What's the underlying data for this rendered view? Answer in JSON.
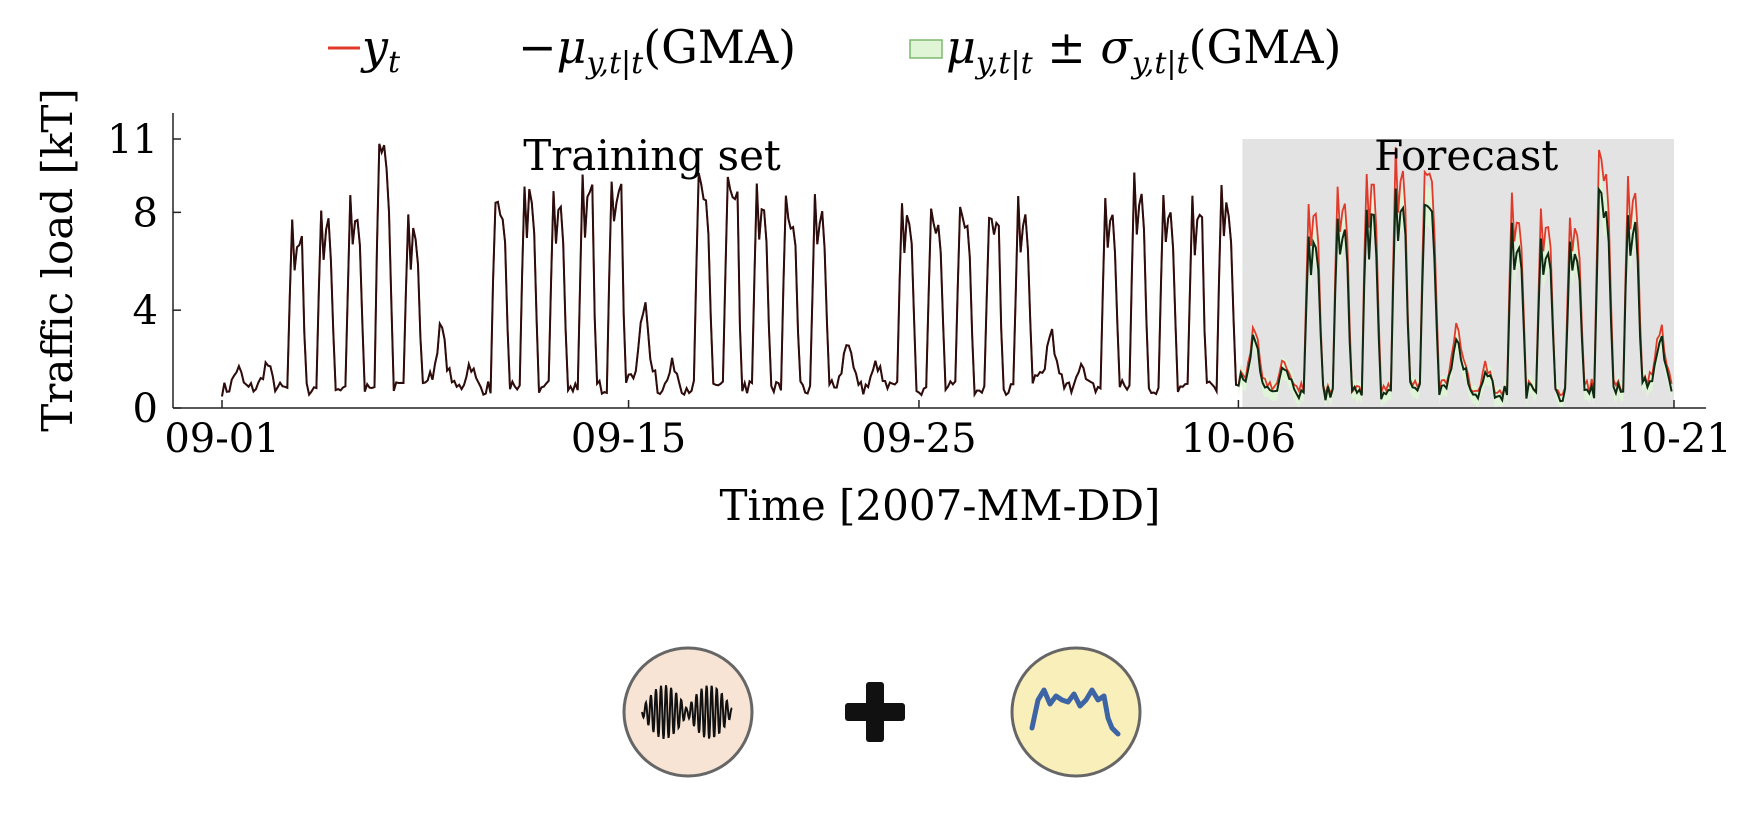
{
  "legend": {
    "entries": [
      {
        "kind": "line",
        "color": "#e03a2a",
        "symbol": "y",
        "subscript": "t",
        "suffix": ""
      },
      {
        "kind": "line",
        "color": "#111111",
        "prefix": "−",
        "symbol": "μ",
        "subscript": "y,t|t",
        "suffix": "(GMA)"
      },
      {
        "kind": "band",
        "color": "#dff5d6",
        "edge": "#7fb870",
        "symbol": "μ",
        "subscript": "y,t|t",
        "mid": " ± σ",
        "subscript2": "y,t|t",
        "suffix": "(GMA)"
      }
    ]
  },
  "chart_data": {
    "type": "line",
    "xlabel": "Time [2007-MM-DD]",
    "ylabel": "Traffic load [kT]",
    "xlim": [
      "2007-09-01",
      "2007-10-21"
    ],
    "ylim": [
      0,
      11
    ],
    "yticks": [
      0,
      4,
      8,
      11
    ],
    "xticks": [
      "09-01",
      "09-15",
      "09-25",
      "10-06",
      "10-21"
    ],
    "xtick_dates": [
      "2007-09-01",
      "2007-09-15",
      "2007-09-25",
      "2007-10-06",
      "2007-10-21"
    ],
    "regions": [
      {
        "label": "Training set",
        "start": "2007-09-01",
        "end": "2007-10-06",
        "shaded": false
      },
      {
        "label": "Forecast",
        "start": "2007-10-06",
        "end": "2007-10-21",
        "shaded": true,
        "color": "#e3e3e3"
      }
    ],
    "series": [
      {
        "name": "y_t",
        "color": "#e03a2a"
      },
      {
        "name": "μ_{y,t|t}(GMA)",
        "color": "#111111"
      },
      {
        "name": "μ_{y,t|t} ± σ_{y,t|t}(GMA)",
        "color": "#dff5d6"
      }
    ],
    "daily_peaks": [
      {
        "date": "2007-09-01",
        "y": 1.1
      },
      {
        "date": "2007-09-02",
        "y": 1.3
      },
      {
        "date": "2007-09-03",
        "y": 7.0
      },
      {
        "date": "2007-09-04",
        "y": 7.8
      },
      {
        "date": "2007-09-05",
        "y": 8.0
      },
      {
        "date": "2007-09-06",
        "y": 10.5
      },
      {
        "date": "2007-09-07",
        "y": 7.3
      },
      {
        "date": "2007-09-08",
        "y": 2.8
      },
      {
        "date": "2007-09-09",
        "y": 1.3
      },
      {
        "date": "2007-09-10",
        "y": 8.2
      },
      {
        "date": "2007-09-11",
        "y": 8.7
      },
      {
        "date": "2007-09-12",
        "y": 8.6
      },
      {
        "date": "2007-09-13",
        "y": 9.0
      },
      {
        "date": "2007-09-14",
        "y": 9.2
      },
      {
        "date": "2007-09-15",
        "y": 3.7
      },
      {
        "date": "2007-09-16",
        "y": 1.3
      },
      {
        "date": "2007-09-17",
        "y": 9.0
      },
      {
        "date": "2007-09-18",
        "y": 8.7
      },
      {
        "date": "2007-09-19",
        "y": 8.6
      },
      {
        "date": "2007-09-20",
        "y": 8.0
      },
      {
        "date": "2007-09-21",
        "y": 8.1
      },
      {
        "date": "2007-09-22",
        "y": 2.3
      },
      {
        "date": "2007-09-23",
        "y": 1.3
      },
      {
        "date": "2007-09-24",
        "y": 8.1
      },
      {
        "date": "2007-09-25",
        "y": 7.8
      },
      {
        "date": "2007-09-26",
        "y": 7.7
      },
      {
        "date": "2007-09-27",
        "y": 7.6
      },
      {
        "date": "2007-09-28",
        "y": 8.0
      },
      {
        "date": "2007-09-29",
        "y": 2.6
      },
      {
        "date": "2007-09-30",
        "y": 1.3
      },
      {
        "date": "2007-10-01",
        "y": 8.1
      },
      {
        "date": "2007-10-02",
        "y": 9.1
      },
      {
        "date": "2007-10-03",
        "y": 8.5
      },
      {
        "date": "2007-10-04",
        "y": 8.0
      },
      {
        "date": "2007-10-05",
        "y": 8.5
      },
      {
        "date": "2007-10-06",
        "y": 2.8
      },
      {
        "date": "2007-10-07",
        "y": 1.4
      },
      {
        "date": "2007-10-08",
        "y": 8.1
      },
      {
        "date": "2007-10-09",
        "y": 8.8
      },
      {
        "date": "2007-10-10",
        "y": 9.5
      },
      {
        "date": "2007-10-11",
        "y": 10.0
      },
      {
        "date": "2007-10-12",
        "y": 9.5
      },
      {
        "date": "2007-10-13",
        "y": 3.0
      },
      {
        "date": "2007-10-14",
        "y": 1.2
      },
      {
        "date": "2007-10-15",
        "y": 8.1
      },
      {
        "date": "2007-10-16",
        "y": 8.0
      },
      {
        "date": "2007-10-17",
        "y": 7.6
      },
      {
        "date": "2007-10-18",
        "y": 10.0
      },
      {
        "date": "2007-10-19",
        "y": 9.3
      },
      {
        "date": "2007-10-20",
        "y": 2.8
      },
      {
        "date": "2007-10-21",
        "y": 1.3
      }
    ]
  },
  "icons": [
    {
      "name": "waveform-icon",
      "fill": "#f7e4d5"
    },
    {
      "name": "plus-icon",
      "fill": "#111111"
    },
    {
      "name": "trend-icon",
      "fill": "#f9efba",
      "line": "#3d64a4"
    }
  ]
}
